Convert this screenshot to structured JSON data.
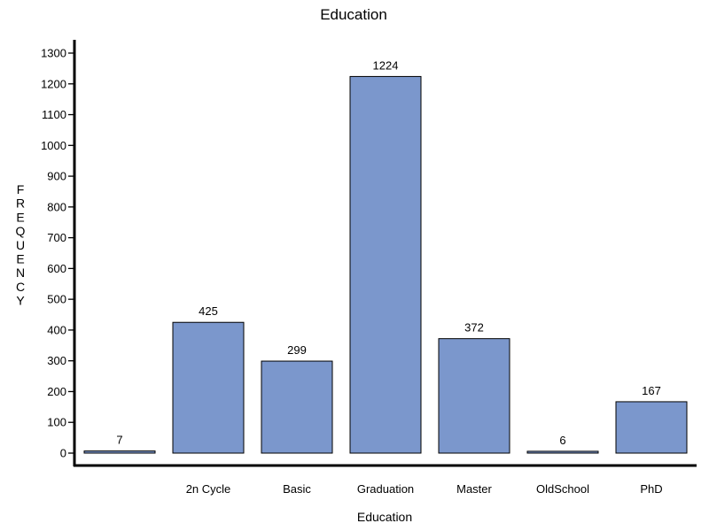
{
  "chart_data": {
    "type": "bar",
    "title": "Education",
    "xlabel": "Education",
    "ylabel": "FREQUENCY",
    "categories": [
      "",
      "2n Cycle",
      "Basic",
      "Graduation",
      "Master",
      "OldSchool",
      "PhD"
    ],
    "values": [
      7,
      425,
      299,
      1224,
      372,
      6,
      167
    ],
    "data_labels": [
      "7",
      "425",
      "299",
      "1224",
      "372",
      "6",
      "167"
    ],
    "yticks": [
      0,
      100,
      200,
      300,
      400,
      500,
      600,
      700,
      800,
      900,
      1000,
      1100,
      1200,
      1300
    ],
    "ylim": [
      0,
      1300
    ],
    "grid": false,
    "legend": "none"
  },
  "colors": {
    "bar_fill": "#7b97cc",
    "bar_stroke": "#000000",
    "axis": "#000000"
  }
}
